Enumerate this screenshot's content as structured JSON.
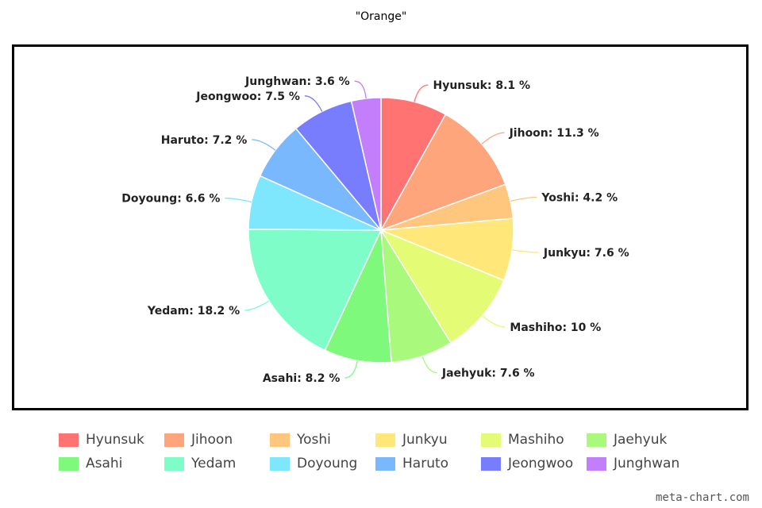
{
  "chart_data": {
    "type": "pie",
    "title": "\"Orange\"",
    "slices": [
      {
        "label": "Hyunsuk",
        "value": 8.1,
        "color": "#ff7373"
      },
      {
        "label": "Jihoon",
        "value": 11.3,
        "color": "#ffa57c"
      },
      {
        "label": "Yoshi",
        "value": 4.2,
        "color": "#ffc67e"
      },
      {
        "label": "Junkyu",
        "value": 7.6,
        "color": "#ffe879"
      },
      {
        "label": "Mashiho",
        "value": 10,
        "color": "#e4fb75"
      },
      {
        "label": "Jaehyuk",
        "value": 7.6,
        "color": "#a8f97c"
      },
      {
        "label": "Asahi",
        "value": 8.2,
        "color": "#7ff97b"
      },
      {
        "label": "Yedam",
        "value": 18.2,
        "color": "#7efdc8"
      },
      {
        "label": "Doyoung",
        "value": 6.6,
        "color": "#7ee7fd"
      },
      {
        "label": "Haruto",
        "value": 7.2,
        "color": "#7ab8fd"
      },
      {
        "label": "Jeongwoo",
        "value": 7.5,
        "color": "#787dfd"
      },
      {
        "label": "Junghwan",
        "value": 3.6,
        "color": "#c37ffb"
      }
    ],
    "label_suffix": " %",
    "legend_position": "bottom"
  },
  "watermark": "meta-chart.com"
}
